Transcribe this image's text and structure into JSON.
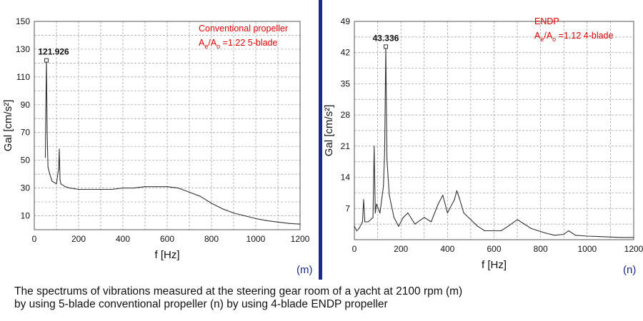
{
  "chart_data": [
    {
      "panel_label": "(m)",
      "type": "line",
      "annotation_lines": [
        "Conventional propeller",
        "Ae/Ao =1.22 5-blade"
      ],
      "peak_label": "121.926",
      "peak": {
        "x": 55,
        "y": 121.926
      },
      "xlabel": "f [Hz]",
      "ylabel": "Gal [cm/s²]",
      "xlim": [
        0,
        1200
      ],
      "ylim": [
        0,
        150
      ],
      "x_ticks": [
        0,
        200,
        400,
        600,
        800,
        1000,
        1200
      ],
      "y_ticks": [
        10,
        30,
        50,
        70,
        90,
        110,
        130,
        150
      ],
      "grid": true,
      "series": [
        {
          "x": [
            50,
            52,
            55,
            58,
            62,
            70,
            80,
            100,
            110,
            113,
            116,
            120,
            140,
            160,
            200,
            250,
            300,
            350,
            400,
            450,
            500,
            550,
            600,
            650,
            700,
            750,
            800,
            850,
            900,
            950,
            1000,
            1050,
            1100,
            1150,
            1200
          ],
          "y": [
            52,
            85,
            121.926,
            70,
            45,
            40,
            35,
            33,
            44,
            58,
            36,
            33,
            31,
            30,
            29,
            29,
            29,
            29,
            30,
            30,
            31,
            31,
            31,
            30,
            27,
            24,
            19,
            15,
            12,
            10,
            8,
            6.5,
            5.5,
            4.5,
            4
          ]
        }
      ]
    },
    {
      "panel_label": "(n)",
      "type": "line",
      "annotation_lines": [
        "ENDP",
        "Ae/Ao =1.12 4-blade"
      ],
      "peak_label": "43.336",
      "peak": {
        "x": 135,
        "y": 43.336
      },
      "xlabel": "f [Hz]",
      "ylabel": "Gal [cm/s²]",
      "xlim": [
        0,
        1200
      ],
      "ylim": [
        0,
        49
      ],
      "x_ticks": [
        0,
        200,
        400,
        600,
        800,
        1000,
        1200
      ],
      "y_ticks": [
        7,
        14,
        21,
        28,
        35,
        42,
        49
      ],
      "grid": true,
      "series": [
        {
          "x": [
            0,
            10,
            20,
            35,
            40,
            45,
            60,
            80,
            85,
            90,
            95,
            110,
            125,
            130,
            135,
            140,
            150,
            170,
            190,
            210,
            230,
            260,
            300,
            330,
            360,
            380,
            400,
            430,
            440,
            450,
            470,
            500,
            530,
            560,
            600,
            630,
            660,
            700,
            730,
            760,
            790,
            820,
            860,
            900,
            920,
            950,
            1000,
            1050,
            1100,
            1150,
            1200
          ],
          "y": [
            3,
            2,
            2.5,
            4,
            9,
            4,
            4,
            5,
            21,
            6,
            8,
            6,
            12,
            20,
            43.336,
            18,
            10,
            5,
            3,
            5,
            6,
            3.5,
            5,
            4,
            8,
            10,
            6,
            9,
            11,
            9.5,
            6,
            4.5,
            3,
            2,
            2,
            2,
            3,
            4.5,
            3.5,
            2.5,
            2,
            1.5,
            1,
            1.2,
            2,
            1,
            0.8,
            0.7,
            0.6,
            0.5,
            0.5
          ]
        }
      ]
    }
  ],
  "caption": {
    "line1": "The spectrums of vibrations measured at the steering gear room of a yacht at 2100 rpm (m)",
    "line2": "by using 5-blade conventional propeller (n) by using 4-blade ENDP propeller"
  },
  "colors": {
    "annotation": "#e00000",
    "divider": "#1a2a8a",
    "panel_label": "#1a2a8a",
    "trace": "#333333",
    "grid": "#9a9a9a",
    "axis_text": "#111111"
  }
}
